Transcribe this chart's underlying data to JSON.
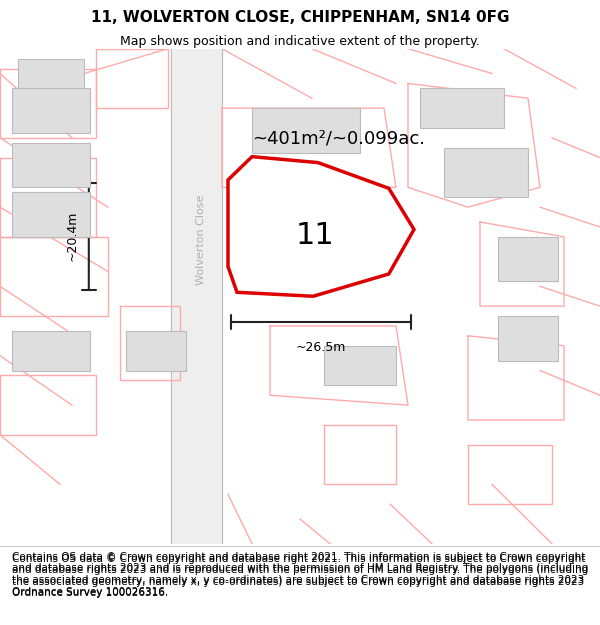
{
  "title": "11, WOLVERTON CLOSE, CHIPPENHAM, SN14 0FG",
  "subtitle": "Map shows position and indicative extent of the property.",
  "footer": "Contains OS data © Crown copyright and database right 2021. This information is subject to Crown copyright and database rights 2023 and is reproduced with the permission of HM Land Registry. The polygons (including the associated geometry, namely x, y co-ordinates) are subject to Crown copyright and database rights 2023 Ordnance Survey 100026316.",
  "area_label": "~401m²/~0.099ac.",
  "plot_number": "11",
  "width_label": "~26.5m",
  "height_label": "~20.4m",
  "street_label": "Wolverton Close",
  "map_bg": "#ffffff",
  "title_fontsize": 11,
  "subtitle_fontsize": 9,
  "footer_fontsize": 7.5,
  "measure_color": "#222222",
  "red_color": "#dd0000",
  "pink_color": "#ffaaaa",
  "gray_poly_fill": "#dedede",
  "gray_poly_edge": "#bbbbbb"
}
